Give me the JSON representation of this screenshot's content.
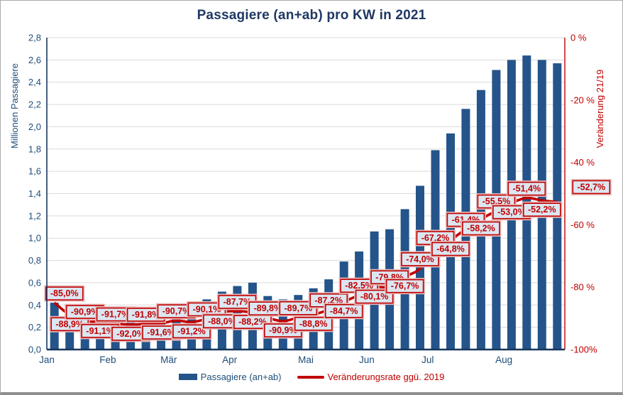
{
  "title": "Passagiere (an+ab) pro KW in 2021",
  "colors": {
    "bar": "#24548A",
    "line": "#C00000",
    "axis_blue": "#1F4E79",
    "axis_dark": "#17375E",
    "title_blue": "#1F3864",
    "grid": "#D9D9D9",
    "label_bg": "#DCE6F1",
    "label_halo": "#E8B9B9"
  },
  "chart_data": {
    "type": "combo-bar-line",
    "title": "Passagiere (an+ab) pro KW in 2021",
    "weeks": 34,
    "categories_months": [
      {
        "label": "Jan",
        "start_week": 1
      },
      {
        "label": "Feb",
        "start_week": 5
      },
      {
        "label": "Mär",
        "start_week": 9
      },
      {
        "label": "Apr",
        "start_week": 13
      },
      {
        "label": "Mai",
        "start_week": 18
      },
      {
        "label": "Jun",
        "start_week": 22
      },
      {
        "label": "Jul",
        "start_week": 26
      },
      {
        "label": "Aug",
        "start_week": 31
      }
    ],
    "series": [
      {
        "name": "Passagiere (an+ab)",
        "type": "bar",
        "axis": "left",
        "unit": "Millionen",
        "values": [
          0.42,
          0.37,
          0.31,
          0.3,
          0.28,
          0.28,
          0.27,
          0.28,
          0.29,
          0.3,
          0.45,
          0.52,
          0.57,
          0.6,
          0.48,
          0.45,
          0.49,
          0.55,
          0.63,
          0.79,
          0.88,
          1.06,
          1.08,
          1.26,
          1.47,
          1.79,
          1.94,
          2.16,
          2.33,
          2.51,
          2.6,
          2.64,
          2.6,
          2.57
        ]
      },
      {
        "name": "Veränderungsrate ggü. 2019",
        "type": "line",
        "axis": "right",
        "unit": "%",
        "values": [
          -85.0,
          -88.9,
          -90.9,
          -91.1,
          -91.7,
          -92.0,
          -91.8,
          -91.6,
          -90.7,
          -91.2,
          -90.1,
          -88.0,
          -87.7,
          -88.2,
          -89.8,
          -90.9,
          -89.7,
          -88.8,
          -87.2,
          -84.7,
          -82.5,
          -80.1,
          -79.8,
          -76.7,
          -74.0,
          -67.2,
          -64.8,
          -61.4,
          -58.2,
          -55.5,
          -53.0,
          -51.4,
          -52.2,
          -52.7
        ]
      }
    ],
    "line_labels": [
      {
        "text": "-85,0%",
        "pos": "above",
        "dx": 14
      },
      {
        "text": "-88,9%",
        "pos": "below"
      },
      {
        "text": "-90,9%",
        "pos": "above"
      },
      {
        "text": "-91,1%",
        "pos": "below"
      },
      {
        "text": "-91,7%",
        "pos": "above"
      },
      {
        "text": "-92,0%",
        "pos": "below"
      },
      {
        "text": "-91,8%",
        "pos": "above"
      },
      {
        "text": "-91,6%",
        "pos": "below"
      },
      {
        "text": "-90,7%",
        "pos": "above"
      },
      {
        "text": "-91,2%",
        "pos": "below"
      },
      {
        "text": "-90,1%",
        "pos": "above"
      },
      {
        "text": "-88,0%",
        "pos": "below"
      },
      {
        "text": "-87,7%",
        "pos": "above"
      },
      {
        "text": "-88,2%",
        "pos": "below"
      },
      {
        "text": "-89,8%",
        "pos": "above"
      },
      {
        "text": "-90,9%",
        "pos": "below"
      },
      {
        "text": "-89,7%",
        "pos": "above"
      },
      {
        "text": "-88,8%",
        "pos": "below"
      },
      {
        "text": "-87,2%",
        "pos": "above"
      },
      {
        "text": "-84,7%",
        "pos": "below"
      },
      {
        "text": "-82,5%",
        "pos": "above"
      },
      {
        "text": "-80,1%",
        "pos": "below"
      },
      {
        "text": "-79,8%",
        "pos": "above"
      },
      {
        "text": "-76,7%",
        "pos": "below"
      },
      {
        "text": "-74,0%",
        "pos": "above"
      },
      {
        "text": "-67,2%",
        "pos": "above"
      },
      {
        "text": "-64,8%",
        "pos": "below"
      },
      {
        "text": "-61,4%",
        "pos": "above"
      },
      {
        "text": "-58,2%",
        "pos": "below"
      },
      {
        "text": "-55,5%",
        "pos": "above"
      },
      {
        "text": "-53,0%",
        "pos": "below"
      },
      {
        "text": "-51,4%",
        "pos": "above"
      },
      {
        "text": "-52,2%",
        "pos": "below"
      },
      {
        "text": "-52,7%",
        "pos": "above",
        "dx": 48,
        "dy": -8
      }
    ],
    "left_axis": {
      "title": "Millionen Passagiere",
      "min": 0,
      "max": 2.8,
      "step": 0.2,
      "tick_labels": [
        "0,0",
        "0,2",
        "0,4",
        "0,6",
        "0,8",
        "1,0",
        "1,2",
        "1,4",
        "1,6",
        "1,8",
        "2,0",
        "2,2",
        "2,4",
        "2,6",
        "2,8"
      ]
    },
    "right_axis": {
      "title": "Veränderung 21/19",
      "min": -100,
      "max": 0,
      "step": 20,
      "tick_labels_top_down": [
        "0 %",
        "-20 %",
        "-40 %",
        "-60 %",
        "-80 %",
        "-100%"
      ]
    },
    "legend": [
      {
        "label": "Passagiere (an+ab)",
        "marker": "bar"
      },
      {
        "label": "Veränderungsrate ggü. 2019",
        "marker": "line"
      }
    ],
    "grid": "horizontal-only",
    "legend_position": "bottom"
  }
}
